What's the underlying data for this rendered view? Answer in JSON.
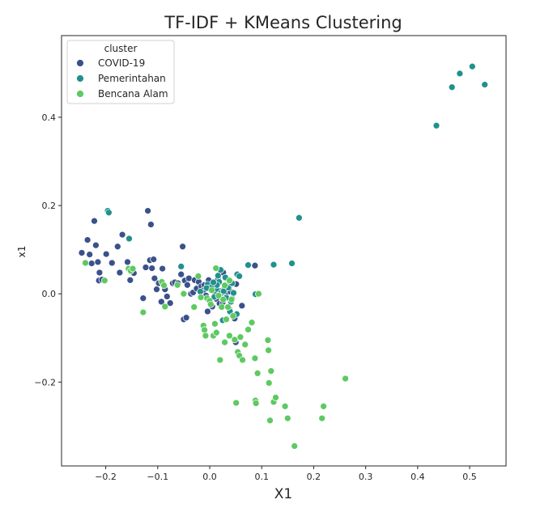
{
  "chart_data": {
    "type": "scatter",
    "title": "TF-IDF + KMeans Clustering",
    "xlabel": "X1",
    "ylabel": "x1",
    "xlim": [
      -0.285,
      0.57
    ],
    "ylim": [
      -0.39,
      0.585
    ],
    "xticks": [
      -0.2,
      -0.1,
      0.0,
      0.1,
      0.2,
      0.3,
      0.4,
      0.5
    ],
    "xtick_labels": [
      "−0.2",
      "−0.1",
      "0.0",
      "0.1",
      "0.2",
      "0.3",
      "0.4",
      "0.5"
    ],
    "yticks": [
      -0.2,
      0.0,
      0.2,
      0.4
    ],
    "ytick_labels": [
      "−0.2",
      "0.0",
      "0.2",
      "0.4"
    ],
    "grid": false,
    "legend": {
      "title": "cluster",
      "placement": "top-left"
    },
    "series": [
      {
        "name": "COVID-19",
        "color": "#3b518b",
        "points": [
          [
            -0.246,
            0.093
          ],
          [
            -0.235,
            0.122
          ],
          [
            -0.231,
            0.089
          ],
          [
            -0.227,
            0.069
          ],
          [
            -0.222,
            0.165
          ],
          [
            -0.219,
            0.11
          ],
          [
            -0.215,
            0.072
          ],
          [
            -0.213,
            0.03
          ],
          [
            -0.212,
            0.048
          ],
          [
            -0.207,
            0.032
          ],
          [
            -0.199,
            0.09
          ],
          [
            -0.188,
            0.07
          ],
          [
            -0.177,
            0.107
          ],
          [
            -0.173,
            0.048
          ],
          [
            -0.168,
            0.134
          ],
          [
            -0.158,
            0.072
          ],
          [
            -0.153,
            0.031
          ],
          [
            -0.146,
            0.047
          ],
          [
            -0.128,
            -0.01
          ],
          [
            -0.123,
            0.06
          ],
          [
            -0.119,
            0.188
          ],
          [
            -0.115,
            0.076
          ],
          [
            -0.113,
            0.157
          ],
          [
            -0.111,
            0.058
          ],
          [
            -0.108,
            0.078
          ],
          [
            -0.106,
            0.035
          ],
          [
            -0.102,
            0.01
          ],
          [
            -0.098,
            0.024
          ],
          [
            -0.093,
            -0.018
          ],
          [
            -0.091,
            0.057
          ],
          [
            -0.086,
            0.01
          ],
          [
            -0.082,
            -0.006
          ],
          [
            -0.076,
            -0.021
          ],
          [
            -0.071,
            0.024
          ],
          [
            -0.067,
            0.026
          ],
          [
            -0.061,
            0.024
          ],
          [
            -0.055,
            0.044
          ],
          [
            -0.052,
            0.107
          ],
          [
            -0.05,
            -0.058
          ],
          [
            -0.048,
            0.03
          ],
          [
            -0.045,
            -0.054
          ],
          [
            -0.043,
            0.02
          ],
          [
            -0.04,
            0.035
          ],
          [
            -0.036,
            0.0
          ],
          [
            -0.032,
            0.003
          ],
          [
            -0.029,
            0.031
          ],
          [
            -0.025,
            0.012
          ],
          [
            -0.021,
            0.027
          ],
          [
            -0.016,
            0.017
          ],
          [
            -0.012,
            0.008
          ],
          [
            -0.007,
            -0.004
          ],
          [
            -0.004,
            -0.04
          ],
          [
            -0.002,
            0.031
          ],
          [
            0.002,
            0.009
          ],
          [
            0.005,
            -0.029
          ],
          [
            0.007,
            0.021
          ],
          [
            0.01,
            0.004
          ],
          [
            0.013,
            -0.012
          ],
          [
            0.016,
            0.034
          ],
          [
            0.019,
            -0.022
          ],
          [
            0.022,
            0.006
          ],
          [
            0.025,
            -0.019
          ],
          [
            0.028,
            0.011
          ],
          [
            0.031,
            -0.001
          ],
          [
            0.034,
            0.018
          ],
          [
            0.037,
            -0.033
          ],
          [
            0.04,
            0.005
          ],
          [
            0.043,
            -0.011
          ],
          [
            0.048,
            -0.056
          ],
          [
            0.051,
            0.022
          ],
          [
            0.062,
            -0.027
          ],
          [
            0.05,
            -0.11
          ],
          [
            0.087,
            0.064
          ],
          [
            0.026,
            0.048
          ],
          [
            -0.01,
            0.02
          ]
        ]
      },
      {
        "name": "Pemerintahan",
        "color": "#21918c",
        "points": [
          [
            0.505,
            0.515
          ],
          [
            0.481,
            0.499
          ],
          [
            0.466,
            0.468
          ],
          [
            0.529,
            0.474
          ],
          [
            0.436,
            0.381
          ],
          [
            -0.196,
            0.188
          ],
          [
            -0.194,
            0.184
          ],
          [
            0.172,
            0.172
          ],
          [
            -0.155,
            0.125
          ],
          [
            0.074,
            0.065
          ],
          [
            0.158,
            0.069
          ],
          [
            0.123,
            0.066
          ],
          [
            -0.055,
            0.062
          ],
          [
            0.053,
            0.044
          ],
          [
            0.057,
            0.04
          ],
          [
            0.088,
            -0.001
          ],
          [
            -0.004,
            0.021
          ],
          [
            0.013,
            0.011
          ],
          [
            0.021,
            0.001
          ],
          [
            0.027,
            0.006
          ],
          [
            0.032,
            -0.009
          ],
          [
            0.036,
            0.014
          ],
          [
            0.041,
            -0.018
          ],
          [
            0.046,
            0.002
          ],
          [
            0.052,
            -0.046
          ],
          [
            0.025,
            -0.06
          ],
          [
            0.018,
            0.027
          ],
          [
            0.009,
            -0.007
          ],
          [
            0.004,
            0.016
          ],
          [
            -0.018,
            0.005
          ],
          [
            0.021,
            0.054
          ],
          [
            0.03,
            0.037
          ],
          [
            0.014,
            0.02
          ],
          [
            0.043,
            0.024
          ],
          [
            0.007,
            0.026
          ],
          [
            0.039,
            -0.04
          ],
          [
            -0.006,
            0.013
          ],
          [
            0.016,
            0.041
          ]
        ]
      },
      {
        "name": "Bencana Alam",
        "color": "#5ec962",
        "points": [
          [
            -0.239,
            0.07
          ],
          [
            -0.202,
            0.03
          ],
          [
            -0.156,
            0.057
          ],
          [
            -0.152,
            0.052
          ],
          [
            -0.148,
            0.057
          ],
          [
            -0.128,
            -0.042
          ],
          [
            -0.092,
            0.027
          ],
          [
            -0.088,
            0.019
          ],
          [
            -0.086,
            -0.029
          ],
          [
            -0.062,
            0.02
          ],
          [
            -0.05,
            -0.0
          ],
          [
            -0.03,
            -0.03
          ],
          [
            -0.017,
            -0.008
          ],
          [
            -0.012,
            -0.072
          ],
          [
            -0.01,
            -0.082
          ],
          [
            -0.008,
            -0.095
          ],
          [
            -0.005,
            -0.01
          ],
          [
            0.0,
            -0.016
          ],
          [
            0.004,
            0.008
          ],
          [
            0.007,
            -0.095
          ],
          [
            0.01,
            -0.068
          ],
          [
            0.013,
            -0.088
          ],
          [
            0.017,
            -0.004
          ],
          [
            0.02,
            -0.15
          ],
          [
            0.023,
            -0.03
          ],
          [
            0.026,
            -0.013
          ],
          [
            0.029,
            -0.11
          ],
          [
            0.032,
            -0.058
          ],
          [
            0.035,
            -0.03
          ],
          [
            0.038,
            -0.095
          ],
          [
            0.042,
            -0.013
          ],
          [
            0.045,
            -0.05
          ],
          [
            0.048,
            -0.104
          ],
          [
            0.051,
            -0.247
          ],
          [
            0.054,
            -0.132
          ],
          [
            0.057,
            -0.14
          ],
          [
            0.059,
            -0.098
          ],
          [
            0.063,
            -0.15
          ],
          [
            0.068,
            -0.115
          ],
          [
            0.074,
            -0.081
          ],
          [
            0.081,
            -0.065
          ],
          [
            0.087,
            -0.146
          ],
          [
            0.088,
            -0.242
          ],
          [
            0.089,
            -0.248
          ],
          [
            0.092,
            -0.18
          ],
          [
            0.094,
            0.0
          ],
          [
            0.112,
            -0.105
          ],
          [
            0.113,
            -0.128
          ],
          [
            0.114,
            -0.202
          ],
          [
            0.116,
            -0.287
          ],
          [
            0.118,
            -0.175
          ],
          [
            0.123,
            -0.245
          ],
          [
            0.127,
            -0.235
          ],
          [
            0.145,
            -0.255
          ],
          [
            0.15,
            -0.282
          ],
          [
            0.163,
            -0.345
          ],
          [
            0.216,
            -0.282
          ],
          [
            0.219,
            -0.255
          ],
          [
            0.261,
            -0.192
          ],
          [
            0.012,
            0.058
          ],
          [
            0.038,
            0.03
          ],
          [
            -0.022,
            0.04
          ],
          [
            0.029,
            0.019
          ],
          [
            0.002,
            -0.024
          ]
        ]
      }
    ]
  }
}
